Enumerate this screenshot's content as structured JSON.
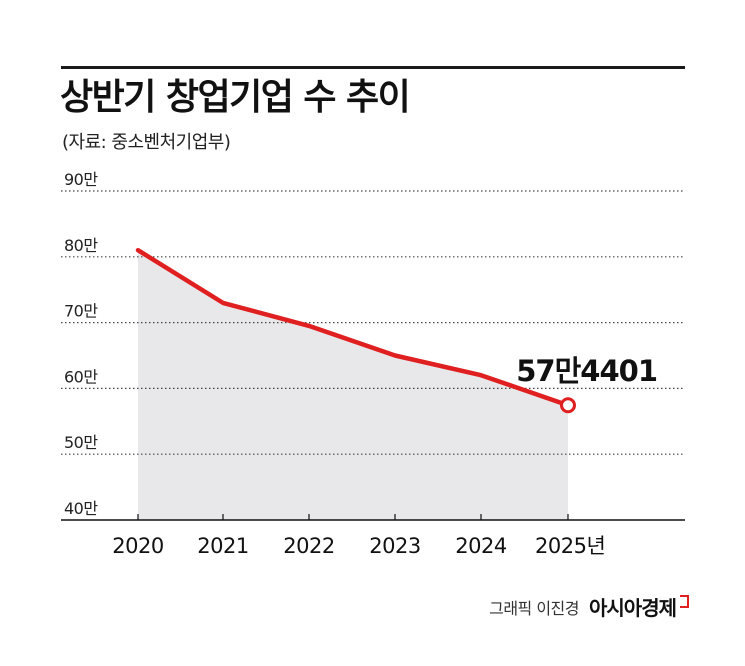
{
  "title": "상반기 창업기업 수 추이",
  "source": "(자료: 중소벤처기업부)",
  "chart_data": {
    "type": "area",
    "categories": [
      "2020",
      "2021",
      "2022",
      "2023",
      "2024",
      "2025년"
    ],
    "values": [
      81,
      73,
      69.5,
      65,
      62,
      57.4401
    ],
    "yticks": [
      "40만",
      "50만",
      "60만",
      "70만",
      "80만",
      "90만"
    ],
    "ylim": [
      40,
      90
    ],
    "grid": true,
    "annotation": "57만4401",
    "colors": {
      "line": "#e02020",
      "area": "#e8e8ea",
      "marker_fill": "#ffffff"
    }
  },
  "credit": {
    "label": "그래픽 이진경",
    "brand": "아시아경제"
  }
}
